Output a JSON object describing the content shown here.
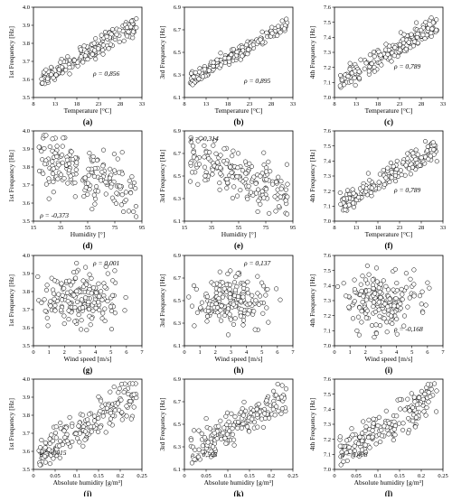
{
  "chart_data": [
    {
      "id": "a",
      "type": "scatter",
      "letter": "(a)",
      "xlabel": "Temperature [°C]",
      "ylabel": "1st Frequency [Hz]",
      "xlim": [
        8,
        33
      ],
      "ylim": [
        3.5,
        4.0
      ],
      "xticks": [
        "8",
        "13",
        "18",
        "23",
        "28",
        "33"
      ],
      "yticks": [
        "3.5",
        "3.6",
        "3.7",
        "3.8",
        "3.9",
        "4.0"
      ],
      "rho": "ρ = 0,856",
      "trend": "pos",
      "spread": 0.1
    },
    {
      "id": "b",
      "type": "scatter",
      "letter": "(b)",
      "xlabel": "Temperature [°C]",
      "ylabel": "3rd Frequency [Hz]",
      "xlim": [
        8,
        33
      ],
      "ylim": [
        6.1,
        6.9
      ],
      "xticks": [
        "8",
        "13",
        "18",
        "23",
        "28",
        "33"
      ],
      "yticks": [
        "6.1",
        "6.3",
        "6.5",
        "6.7",
        "6.9"
      ],
      "rho": "ρ = 0,895",
      "trend": "pos",
      "spread": 0.08
    },
    {
      "id": "c",
      "type": "scatter",
      "letter": "(c)",
      "xlabel": "Temperature [°C]",
      "ylabel": "4th Frequency [Hz]",
      "xlim": [
        8,
        33
      ],
      "ylim": [
        7.0,
        7.6
      ],
      "xticks": [
        "8",
        "13",
        "18",
        "23",
        "28",
        "33"
      ],
      "yticks": [
        "7.0",
        "7.1",
        "7.2",
        "7.3",
        "7.4",
        "7.5",
        "7.6"
      ],
      "rho": "ρ = 0,789",
      "trend": "pos",
      "spread": 0.12
    },
    {
      "id": "d",
      "type": "scatter",
      "letter": "(d)",
      "xlabel": "Humidity [°]",
      "ylabel": "1st Frequency [Hz]",
      "xlim": [
        15,
        95
      ],
      "ylim": [
        3.5,
        4.0
      ],
      "xticks": [
        "15",
        "35",
        "55",
        "75",
        "95"
      ],
      "yticks": [
        "3.5",
        "3.6",
        "3.7",
        "3.8",
        "3.9",
        "4.0"
      ],
      "rho": "ρ = -0,373",
      "trend": "neg",
      "spread": 0.3
    },
    {
      "id": "e",
      "type": "scatter",
      "letter": "(e)",
      "xlabel": "Humidity [°]",
      "ylabel": "3rd Frequency [Hz]",
      "xlim": [
        15,
        95
      ],
      "ylim": [
        6.1,
        6.9
      ],
      "xticks": [
        "15",
        "35",
        "55",
        "75",
        "95"
      ],
      "yticks": [
        "6.1",
        "6.3",
        "6.5",
        "6.7",
        "6.9"
      ],
      "rho": "ρ = -0,314",
      "trend": "neg",
      "spread": 0.28
    },
    {
      "id": "f",
      "type": "scatter",
      "letter": "(f)",
      "xlabel": "Temperature [°C]",
      "ylabel": "4th Frequency [Hz]",
      "xlim": [
        8,
        33
      ],
      "ylim": [
        7.0,
        7.6
      ],
      "xticks": [
        "8",
        "13",
        "18",
        "23",
        "28",
        "33"
      ],
      "yticks": [
        "7.0",
        "7.1",
        "7.2",
        "7.3",
        "7.4",
        "7.5",
        "7.6"
      ],
      "rho": "ρ = 0,789",
      "trend": "pos",
      "spread": 0.12
    },
    {
      "id": "g",
      "type": "scatter",
      "letter": "(g)",
      "xlabel": "Wind speed [m/s]",
      "ylabel": "1st Frequency [Hz]",
      "xlim": [
        0,
        7
      ],
      "ylim": [
        3.5,
        4.0
      ],
      "xticks": [
        "0",
        "1",
        "2",
        "3",
        "4",
        "5",
        "6",
        "7"
      ],
      "yticks": [
        "3.5",
        "3.6",
        "3.7",
        "3.8",
        "3.9",
        "4.0"
      ],
      "rho": "ρ = 0,001",
      "trend": "flat",
      "spread": 0.3
    },
    {
      "id": "h",
      "type": "scatter",
      "letter": "(h)",
      "xlabel": "Wind speed [m/s]",
      "ylabel": "3rd Frequency [Hz]",
      "xlim": [
        0,
        7
      ],
      "ylim": [
        6.1,
        6.9
      ],
      "xticks": [
        "0",
        "1",
        "2",
        "3",
        "4",
        "5",
        "6",
        "7"
      ],
      "yticks": [
        "6.1",
        "6.3",
        "6.5",
        "6.7",
        "6.9"
      ],
      "rho": "ρ = 0,137",
      "trend": "flat",
      "spread": 0.3
    },
    {
      "id": "i",
      "type": "scatter",
      "letter": "(i)",
      "xlabel": "Wind speed [m/s]",
      "ylabel": "4th Frequency [Hz]",
      "xlim": [
        0,
        7
      ],
      "ylim": [
        7.0,
        7.6
      ],
      "xticks": [
        "0",
        "1",
        "2",
        "3",
        "4",
        "5",
        "6",
        "7"
      ],
      "yticks": [
        "7.0",
        "7.1",
        "7.2",
        "7.3",
        "7.4",
        "7.5",
        "7.6"
      ],
      "rho": "ρ = -0,168",
      "trend": "flat",
      "spread": 0.3
    },
    {
      "id": "j",
      "type": "scatter",
      "letter": "(j)",
      "xlabel": "Absolute humidity [g/m³]",
      "ylabel": "1st Frequency [Hz]",
      "xlim": [
        0,
        0.25
      ],
      "ylim": [
        3.5,
        4.0
      ],
      "xticks": [
        "0",
        "0.05",
        "0.1",
        "0.15",
        "0.2",
        "0.25"
      ],
      "yticks": [
        "3.5",
        "3.6",
        "3.7",
        "3.8",
        "3.9",
        "4.0"
      ],
      "rho": "ρ = 0,615",
      "trend": "pos",
      "spread": 0.2
    },
    {
      "id": "k",
      "type": "scatter",
      "letter": "(k)",
      "xlabel": "Absolute humidity [g/m³]",
      "ylabel": "3rd Frequency [Hz]",
      "xlim": [
        0,
        0.25
      ],
      "ylim": [
        6.1,
        6.9
      ],
      "xticks": [
        "0",
        "0.05",
        "0.1",
        "0.15",
        "0.2",
        "0.25"
      ],
      "yticks": [
        "6.1",
        "6.3",
        "6.5",
        "6.7",
        "6.9"
      ],
      "rho": "ρ = 0,593",
      "trend": "pos",
      "spread": 0.2
    },
    {
      "id": "l",
      "type": "scatter",
      "letter": "(l)",
      "xlabel": "Absolute humidity [g/m³]",
      "ylabel": "4th Frequency [Hz]",
      "xlim": [
        0,
        0.25
      ],
      "ylim": [
        7.0,
        7.6
      ],
      "xticks": [
        "0",
        "0.05",
        "0.1",
        "0.15",
        "0.2",
        "0.25"
      ],
      "yticks": [
        "7.0",
        "7.1",
        "7.2",
        "7.3",
        "7.4",
        "7.5",
        "7.6"
      ],
      "rho": "ρ = 0,498",
      "trend": "pos",
      "spread": 0.22
    }
  ]
}
